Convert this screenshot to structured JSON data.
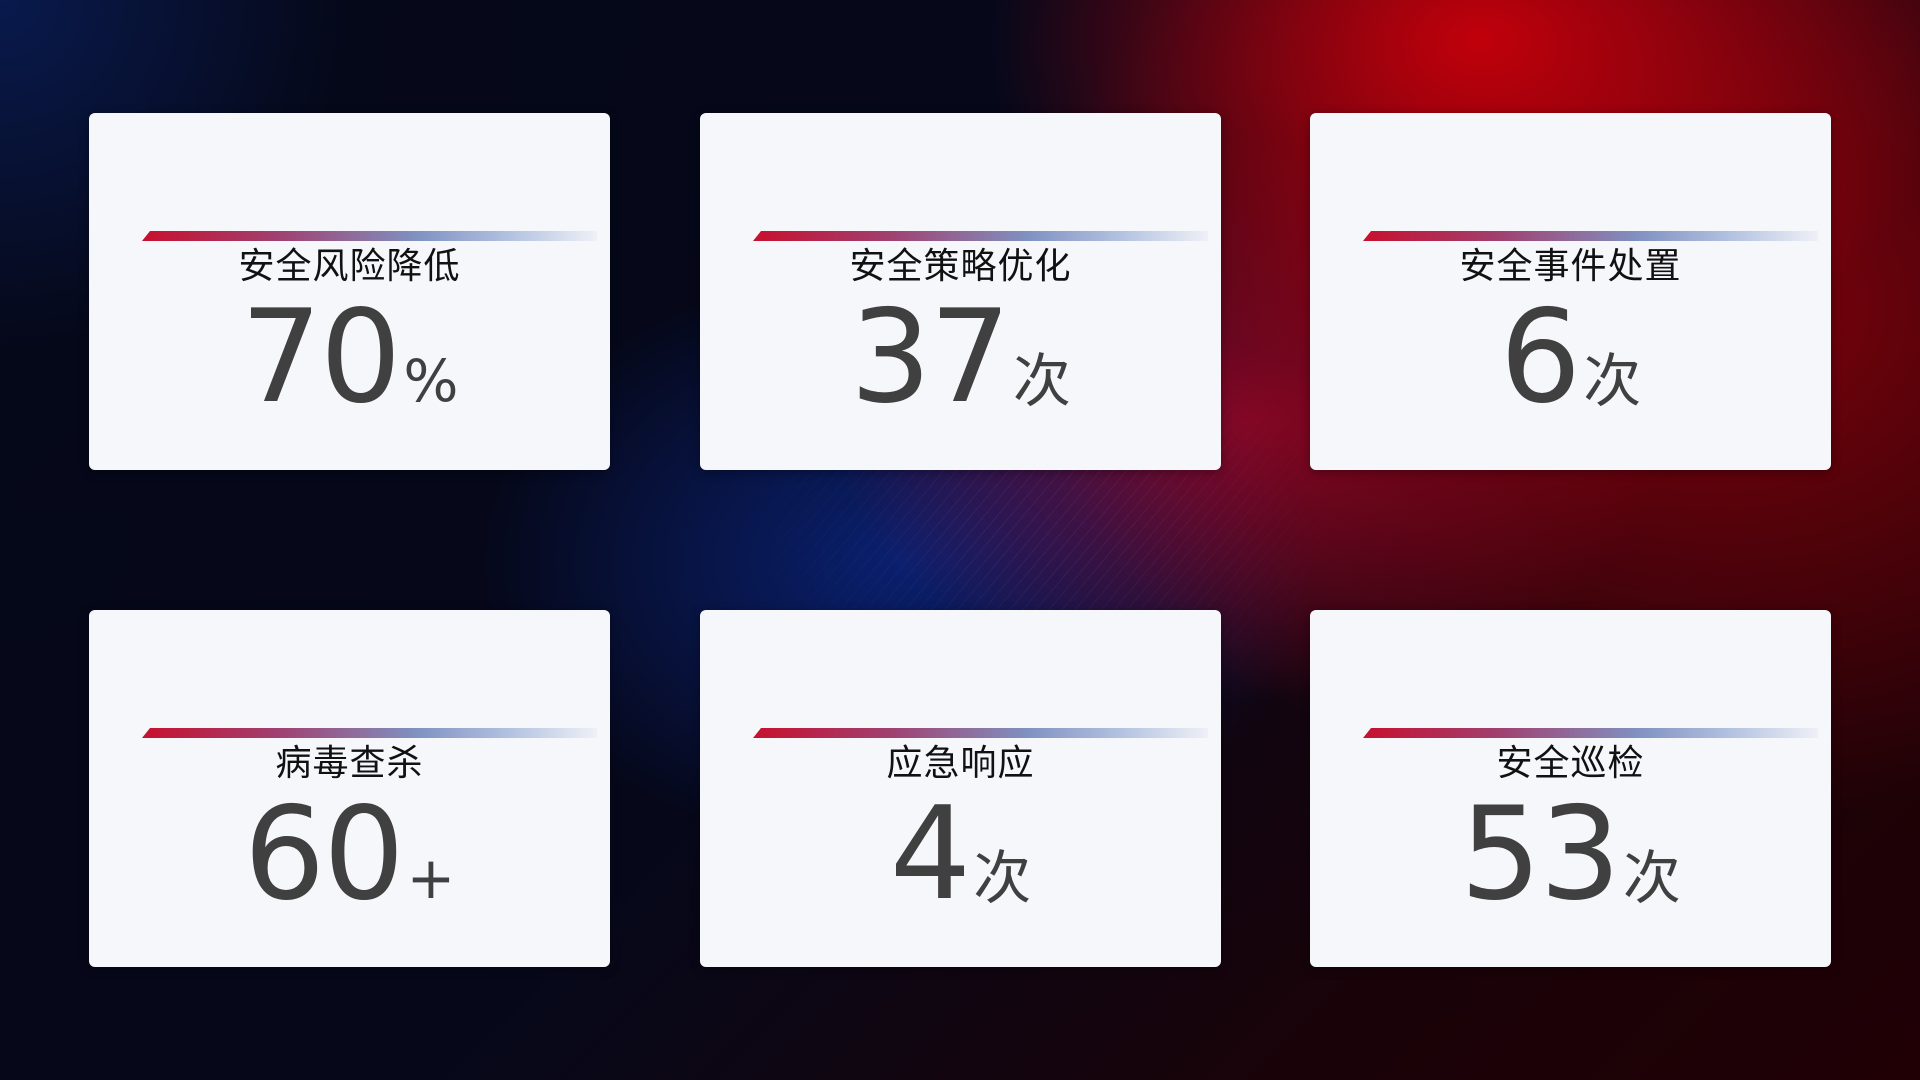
{
  "cards": [
    {
      "title": "安全风险降低",
      "value": "70",
      "unit": "%"
    },
    {
      "title": "安全策略优化",
      "value": "37",
      "unit": "次"
    },
    {
      "title": "安全事件处置",
      "value": "6",
      "unit": "次"
    },
    {
      "title": "病毒查杀",
      "value": "60",
      "unit": "+"
    },
    {
      "title": "应急响应",
      "value": "4",
      "unit": "次"
    },
    {
      "title": "安全巡检",
      "value": "53",
      "unit": "次"
    }
  ],
  "colors": {
    "accent_red": "#c8102e",
    "accent_blue": "#8090c0",
    "card_bg": "#f6f7fb",
    "value_text": "#404040"
  }
}
